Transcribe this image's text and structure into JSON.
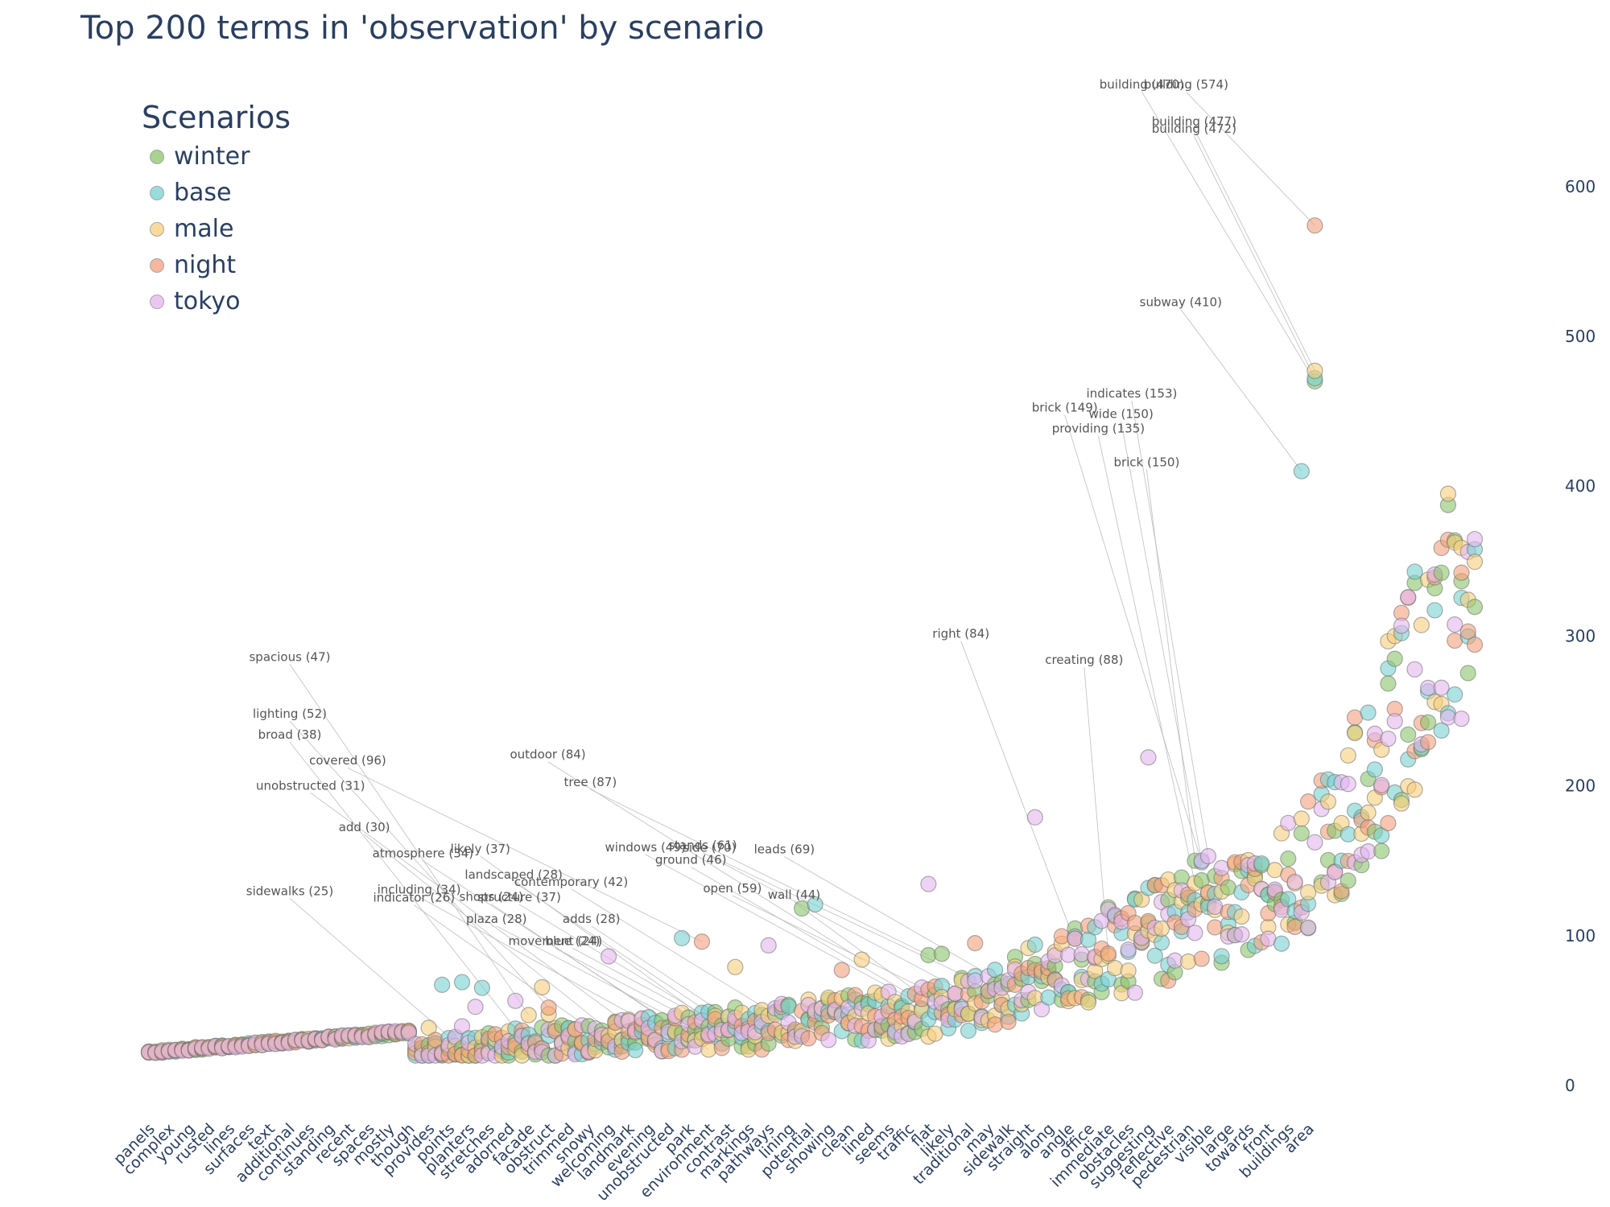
{
  "chart_data": {
    "type": "scatter",
    "title": "Top 200 terms in 'observation' by scenario",
    "legend_title": "Scenarios",
    "legend_position": "top-left",
    "y_axis_side": "right",
    "ylim": [
      -15,
      680
    ],
    "yticks": [
      0,
      100,
      200,
      300,
      400,
      500,
      600
    ],
    "n_terms": 200,
    "series": [
      {
        "name": "winter",
        "color": "#8bc46a"
      },
      {
        "name": "base",
        "color": "#77d1d1"
      },
      {
        "name": "male",
        "color": "#f6cf7b"
      },
      {
        "name": "night",
        "color": "#f3a07c"
      },
      {
        "name": "tokyo",
        "color": "#e2b5ef"
      }
    ],
    "x_tick_labels": [
      {
        "label": "panels",
        "index": 1
      },
      {
        "label": "complex",
        "index": 4
      },
      {
        "label": "young",
        "index": 7
      },
      {
        "label": "rusted",
        "index": 10
      },
      {
        "label": "lines",
        "index": 13
      },
      {
        "label": "surfaces",
        "index": 16
      },
      {
        "label": "text",
        "index": 19
      },
      {
        "label": "additional",
        "index": 22
      },
      {
        "label": "continues",
        "index": 25
      },
      {
        "label": "standing",
        "index": 28
      },
      {
        "label": "recent",
        "index": 31
      },
      {
        "label": "spaces",
        "index": 34
      },
      {
        "label": "mostly",
        "index": 37
      },
      {
        "label": "though",
        "index": 40
      },
      {
        "label": "provides",
        "index": 43
      },
      {
        "label": "points",
        "index": 46
      },
      {
        "label": "planters",
        "index": 49
      },
      {
        "label": "stretches",
        "index": 52
      },
      {
        "label": "adorned",
        "index": 55
      },
      {
        "label": "facade",
        "index": 58
      },
      {
        "label": "obstruct",
        "index": 61
      },
      {
        "label": "trimmed",
        "index": 64
      },
      {
        "label": "snowy",
        "index": 67
      },
      {
        "label": "welcoming",
        "index": 70
      },
      {
        "label": "landmark",
        "index": 73
      },
      {
        "label": "evening",
        "index": 76
      },
      {
        "label": "unobstructed",
        "index": 79
      },
      {
        "label": "park",
        "index": 82
      },
      {
        "label": "environment",
        "index": 85
      },
      {
        "label": "contrast",
        "index": 88
      },
      {
        "label": "markings",
        "index": 91
      },
      {
        "label": "pathways",
        "index": 94
      },
      {
        "label": "lining",
        "index": 97
      },
      {
        "label": "potential",
        "index": 100
      },
      {
        "label": "showing",
        "index": 103
      },
      {
        "label": "clean",
        "index": 106
      },
      {
        "label": "lined",
        "index": 109
      },
      {
        "label": "seems",
        "index": 112
      },
      {
        "label": "traffic",
        "index": 115
      },
      {
        "label": "flat",
        "index": 118
      },
      {
        "label": "likely",
        "index": 121
      },
      {
        "label": "traditional",
        "index": 124
      },
      {
        "label": "may",
        "index": 127
      },
      {
        "label": "sidewalk",
        "index": 130
      },
      {
        "label": "straight",
        "index": 133
      },
      {
        "label": "along",
        "index": 136
      },
      {
        "label": "angle",
        "index": 139
      },
      {
        "label": "office",
        "index": 142
      },
      {
        "label": "immediate",
        "index": 145
      },
      {
        "label": "obstacles",
        "index": 148
      },
      {
        "label": "suggesting",
        "index": 151
      },
      {
        "label": "reflective",
        "index": 154
      },
      {
        "label": "pedestrian",
        "index": 157
      },
      {
        "label": "visible",
        "index": 160
      },
      {
        "label": "large",
        "index": 163
      },
      {
        "label": "towards",
        "index": 166
      },
      {
        "label": "front",
        "index": 169
      },
      {
        "label": "buildings",
        "index": 172
      },
      {
        "label": "area",
        "index": 175
      }
    ],
    "annotations": [
      {
        "text": "building (574)",
        "term_index": 175,
        "series": "night",
        "value": 574
      },
      {
        "text": "building (470)",
        "term_index": 175,
        "series": "winter",
        "value": 470
      },
      {
        "text": "building (472)",
        "term_index": 175,
        "series": "base",
        "value": 472
      },
      {
        "text": "building (477)",
        "term_index": 175,
        "series": "male",
        "value": 477
      },
      {
        "text": "subway (410)",
        "term_index": 173,
        "series": "base",
        "value": 410
      },
      {
        "text": "brick (149)",
        "term_index": 158,
        "series": "base",
        "value": 149
      },
      {
        "text": "wide (150)",
        "term_index": 158,
        "series": "tokyo",
        "value": 150
      },
      {
        "text": "brick (150)",
        "term_index": 157,
        "series": "winter",
        "value": 150
      },
      {
        "text": "indicates (153)",
        "term_index": 159,
        "series": "tokyo",
        "value": 153
      },
      {
        "text": "providing (135)",
        "term_index": 157,
        "series": "male",
        "value": 135
      },
      {
        "text": "right (84)",
        "term_index": 140,
        "series": "winter",
        "value": 84
      },
      {
        "text": "creating (88)",
        "term_index": 144,
        "series": "night",
        "value": 88
      },
      {
        "text": "covered (96)",
        "term_index": 83,
        "series": "night",
        "value": 96
      },
      {
        "text": "outdoor (84)",
        "term_index": 107,
        "series": "male",
        "value": 84
      },
      {
        "text": "tree (87)",
        "term_index": 117,
        "series": "winter",
        "value": 87
      },
      {
        "text": "windows (49)",
        "term_index": 118,
        "series": "base",
        "value": 49
      },
      {
        "text": "ground (46)",
        "term_index": 120,
        "series": "male",
        "value": 46
      },
      {
        "text": "stands (61)",
        "term_index": 123,
        "series": "night",
        "value": 61
      },
      {
        "text": "side (70)",
        "term_index": 124,
        "series": "tokyo",
        "value": 70
      },
      {
        "text": "leads (69)",
        "term_index": 128,
        "series": "winter",
        "value": 69
      },
      {
        "text": "wall (44)",
        "term_index": 121,
        "series": "base",
        "value": 44
      },
      {
        "text": "open (59)",
        "term_index": 119,
        "series": "male",
        "value": 59
      },
      {
        "text": "spacious (47)",
        "term_index": 57,
        "series": "male",
        "value": 47
      },
      {
        "text": "broad (38)",
        "term_index": 55,
        "series": "base",
        "value": 38
      },
      {
        "text": "lighting (52)",
        "term_index": 60,
        "series": "night",
        "value": 52
      },
      {
        "text": "unobstructed (31)",
        "term_index": 75,
        "series": "winter",
        "value": 31
      },
      {
        "text": "add (30)",
        "term_index": 71,
        "series": "male",
        "value": 30
      },
      {
        "text": "atmosphere (34)",
        "term_index": 81,
        "series": "night",
        "value": 34
      },
      {
        "text": "likely (37)",
        "term_index": 86,
        "series": "tokyo",
        "value": 37
      },
      {
        "text": "landscaped (28)",
        "term_index": 91,
        "series": "winter",
        "value": 28
      },
      {
        "text": "including (34)",
        "term_index": 78,
        "series": "base",
        "value": 34
      },
      {
        "text": "shops (24)",
        "term_index": 84,
        "series": "male",
        "value": 24
      },
      {
        "text": "structure (37)",
        "term_index": 87,
        "series": "night",
        "value": 37
      },
      {
        "text": "contemporary (42)",
        "term_index": 96,
        "series": "tokyo",
        "value": 42
      },
      {
        "text": "adds (28)",
        "term_index": 93,
        "series": "winter",
        "value": 28
      },
      {
        "text": "plaza (28)",
        "term_index": 86,
        "series": "base",
        "value": 28
      },
      {
        "text": "movement (24)",
        "term_index": 90,
        "series": "male",
        "value": 24
      },
      {
        "text": "blue (24)",
        "term_index": 92,
        "series": "night",
        "value": 24
      },
      {
        "text": "indicator (26)",
        "term_index": 70,
        "series": "tokyo",
        "value": 26
      },
      {
        "text": "sidewalks (25)",
        "term_index": 47,
        "series": "winter",
        "value": 25
      }
    ]
  }
}
